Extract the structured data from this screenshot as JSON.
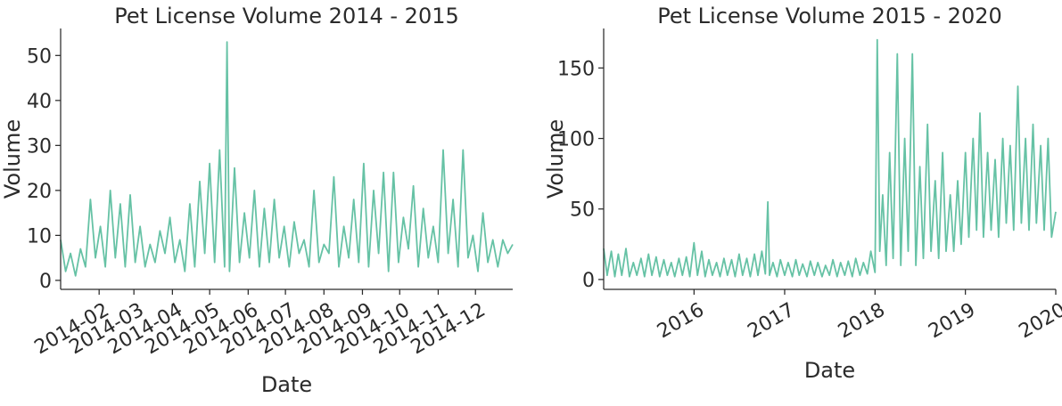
{
  "chart_data": [
    {
      "type": "line",
      "title": "Pet License Volume 2014 - 2015",
      "xlabel": "Date",
      "ylabel": "Volume",
      "xlim": [
        "2014-01-01",
        "2014-12-31"
      ],
      "ylim": [
        -2,
        56
      ],
      "x_ticks": [
        "2014-02",
        "2014-03",
        "2014-04",
        "2014-05",
        "2014-06",
        "2014-07",
        "2014-08",
        "2014-09",
        "2014-10",
        "2014-11",
        "2014-12"
      ],
      "y_ticks": [
        0,
        10,
        20,
        30,
        40,
        50
      ],
      "grid": false,
      "series": [
        {
          "color": "#66c2a5",
          "x": [
            "2014-01-01",
            "2014-01-05",
            "2014-01-09",
            "2014-01-13",
            "2014-01-17",
            "2014-01-21",
            "2014-01-25",
            "2014-01-29",
            "2014-02-02",
            "2014-02-06",
            "2014-02-10",
            "2014-02-14",
            "2014-02-18",
            "2014-02-22",
            "2014-02-26",
            "2014-03-02",
            "2014-03-06",
            "2014-03-10",
            "2014-03-14",
            "2014-03-18",
            "2014-03-22",
            "2014-03-26",
            "2014-03-30",
            "2014-04-03",
            "2014-04-07",
            "2014-04-11",
            "2014-04-15",
            "2014-04-19",
            "2014-04-23",
            "2014-04-27",
            "2014-05-01",
            "2014-05-05",
            "2014-05-09",
            "2014-05-13",
            "2014-05-15",
            "2014-05-17",
            "2014-05-21",
            "2014-05-25",
            "2014-05-29",
            "2014-06-02",
            "2014-06-06",
            "2014-06-10",
            "2014-06-14",
            "2014-06-18",
            "2014-06-22",
            "2014-06-26",
            "2014-06-30",
            "2014-07-04",
            "2014-07-08",
            "2014-07-12",
            "2014-07-16",
            "2014-07-20",
            "2014-07-24",
            "2014-07-28",
            "2014-08-01",
            "2014-08-05",
            "2014-08-09",
            "2014-08-13",
            "2014-08-17",
            "2014-08-21",
            "2014-08-25",
            "2014-08-29",
            "2014-09-02",
            "2014-09-06",
            "2014-09-10",
            "2014-09-14",
            "2014-09-18",
            "2014-09-22",
            "2014-09-26",
            "2014-09-30",
            "2014-10-04",
            "2014-10-08",
            "2014-10-12",
            "2014-10-16",
            "2014-10-20",
            "2014-10-24",
            "2014-10-28",
            "2014-11-01",
            "2014-11-05",
            "2014-11-09",
            "2014-11-13",
            "2014-11-17",
            "2014-11-21",
            "2014-11-25",
            "2014-11-29",
            "2014-12-03",
            "2014-12-07",
            "2014-12-11",
            "2014-12-15",
            "2014-12-19",
            "2014-12-23",
            "2014-12-27",
            "2014-12-31"
          ],
          "y": [
            9,
            2,
            6,
            1,
            7,
            3,
            18,
            5,
            12,
            3,
            20,
            5,
            17,
            3,
            19,
            4,
            12,
            3,
            8,
            4,
            11,
            6,
            14,
            4,
            9,
            2,
            17,
            3,
            22,
            6,
            26,
            4,
            29,
            3,
            53,
            2,
            25,
            4,
            15,
            5,
            20,
            3,
            16,
            4,
            18,
            5,
            12,
            3,
            13,
            6,
            9,
            3,
            20,
            4,
            8,
            6,
            23,
            3,
            12,
            5,
            18,
            4,
            26,
            3,
            20,
            6,
            24,
            2,
            24,
            4,
            14,
            7,
            21,
            3,
            16,
            5,
            12,
            4,
            29,
            6,
            18,
            3,
            29,
            5,
            10,
            2,
            15,
            4,
            9,
            3,
            9,
            6,
            8
          ]
        }
      ]
    },
    {
      "type": "line",
      "title": "Pet License Volume 2015 - 2020",
      "xlabel": "Date",
      "ylabel": "Volume",
      "xlim": [
        "2015-01-01",
        "2020-01-01"
      ],
      "ylim": [
        -7,
        178
      ],
      "x_ticks": [
        "2016",
        "2017",
        "2018",
        "2019",
        "2020"
      ],
      "y_ticks": [
        0,
        50,
        100,
        150
      ],
      "grid": false,
      "series": [
        {
          "color": "#66c2a5",
          "x": [
            "2015-01-01",
            "2015-01-15",
            "2015-02-01",
            "2015-02-15",
            "2015-03-01",
            "2015-03-15",
            "2015-04-01",
            "2015-04-15",
            "2015-05-01",
            "2015-05-15",
            "2015-06-01",
            "2015-06-15",
            "2015-07-01",
            "2015-07-15",
            "2015-08-01",
            "2015-08-15",
            "2015-09-01",
            "2015-09-15",
            "2015-10-01",
            "2015-10-15",
            "2015-11-01",
            "2015-11-15",
            "2015-12-01",
            "2015-12-15",
            "2016-01-01",
            "2016-01-15",
            "2016-02-01",
            "2016-02-15",
            "2016-03-01",
            "2016-03-15",
            "2016-04-01",
            "2016-04-15",
            "2016-05-01",
            "2016-05-15",
            "2016-06-01",
            "2016-06-15",
            "2016-07-01",
            "2016-07-15",
            "2016-08-01",
            "2016-08-15",
            "2016-09-01",
            "2016-09-15",
            "2016-10-01",
            "2016-10-15",
            "2016-10-25",
            "2016-11-01",
            "2016-11-15",
            "2016-12-01",
            "2016-12-15",
            "2017-01-01",
            "2017-01-15",
            "2017-02-01",
            "2017-02-15",
            "2017-03-01",
            "2017-03-15",
            "2017-04-01",
            "2017-04-15",
            "2017-05-01",
            "2017-05-15",
            "2017-06-01",
            "2017-06-15",
            "2017-07-01",
            "2017-07-15",
            "2017-08-01",
            "2017-08-15",
            "2017-09-01",
            "2017-09-15",
            "2017-10-01",
            "2017-10-15",
            "2017-11-01",
            "2017-11-15",
            "2017-12-01",
            "2017-12-15",
            "2018-01-01",
            "2018-01-10",
            "2018-01-20",
            "2018-02-01",
            "2018-02-15",
            "2018-03-01",
            "2018-03-15",
            "2018-04-01",
            "2018-04-15",
            "2018-05-01",
            "2018-05-15",
            "2018-06-01",
            "2018-06-15",
            "2018-07-01",
            "2018-07-15",
            "2018-08-01",
            "2018-08-15",
            "2018-09-01",
            "2018-09-15",
            "2018-10-01",
            "2018-10-15",
            "2018-11-01",
            "2018-11-15",
            "2018-12-01",
            "2018-12-15",
            "2019-01-01",
            "2019-01-15",
            "2019-02-01",
            "2019-02-15",
            "2019-03-01",
            "2019-03-15",
            "2019-04-01",
            "2019-04-15",
            "2019-05-01",
            "2019-05-15",
            "2019-06-01",
            "2019-06-15",
            "2019-07-01",
            "2019-07-15",
            "2019-08-01",
            "2019-08-15",
            "2019-09-01",
            "2019-09-15",
            "2019-10-01",
            "2019-10-15",
            "2019-11-01",
            "2019-11-15",
            "2019-12-01",
            "2019-12-15",
            "2020-01-01"
          ],
          "y": [
            22,
            3,
            20,
            2,
            18,
            3,
            22,
            2,
            12,
            3,
            15,
            2,
            18,
            3,
            16,
            2,
            14,
            3,
            12,
            2,
            15,
            3,
            16,
            2,
            26,
            3,
            20,
            2,
            14,
            3,
            12,
            2,
            15,
            3,
            14,
            2,
            18,
            3,
            15,
            2,
            18,
            3,
            20,
            4,
            55,
            3,
            12,
            2,
            14,
            3,
            12,
            2,
            14,
            3,
            11,
            2,
            13,
            3,
            12,
            2,
            10,
            3,
            14,
            2,
            12,
            3,
            13,
            2,
            15,
            3,
            12,
            4,
            20,
            5,
            170,
            20,
            60,
            10,
            90,
            15,
            160,
            10,
            100,
            20,
            160,
            10,
            80,
            15,
            110,
            20,
            70,
            15,
            90,
            20,
            60,
            20,
            70,
            25,
            90,
            30,
            100,
            35,
            118,
            30,
            90,
            35,
            85,
            30,
            100,
            40,
            95,
            35,
            137,
            40,
            100,
            35,
            110,
            40,
            95,
            35,
            100,
            30,
            48
          ]
        }
      ]
    }
  ]
}
